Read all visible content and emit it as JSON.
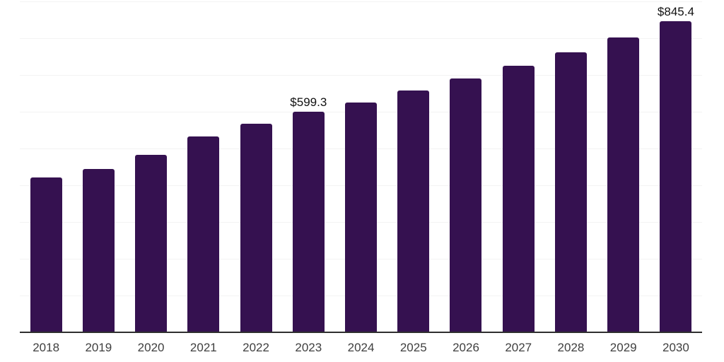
{
  "chart_data": {
    "type": "bar",
    "title": "",
    "xlabel": "",
    "ylabel": "",
    "categories": [
      "2018",
      "2019",
      "2020",
      "2021",
      "2022",
      "2023",
      "2024",
      "2025",
      "2026",
      "2027",
      "2028",
      "2029",
      "2030"
    ],
    "values": [
      421.0,
      445.0,
      483.5,
      533.5,
      568.0,
      599.3,
      624.5,
      657.0,
      690.5,
      725.5,
      762.5,
      802.5,
      845.4
    ],
    "labeled_points": [
      {
        "category": "2023",
        "label": "$599.3"
      },
      {
        "category": "2030",
        "label": "$845.4"
      }
    ],
    "ylim": [
      0,
      900
    ],
    "gridline_interval": 100,
    "grid": true,
    "legend": "none",
    "colors": {
      "bar": "#351150",
      "background": "#ffffff",
      "gridline": "#f3f3f3",
      "axis_line": "#2f2f2f",
      "tick_label": "#3f3f3f",
      "data_label": "#111111"
    }
  }
}
